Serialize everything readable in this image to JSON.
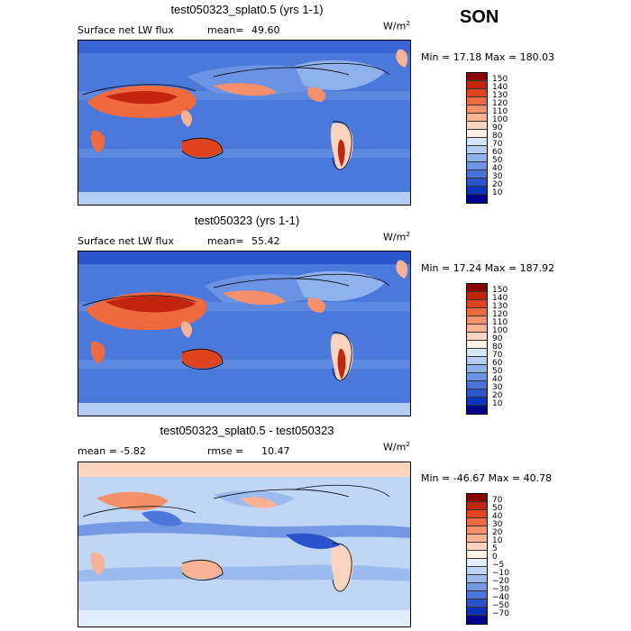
{
  "season": "SON",
  "units_main": "W/m",
  "units_sup": "2",
  "panels": [
    {
      "title": "test050323_splat0.5 (yrs 1-1)",
      "left_text": "Surface net LW flux",
      "right_label": "mean=",
      "right_value": "49.60",
      "minmax": "Min =  17.18 Max = 180.03",
      "colorbar_labels": [
        "150",
        "140",
        "130",
        "120",
        "110",
        "100",
        "90",
        "80",
        "70",
        "60",
        "50",
        "40",
        "30",
        "20",
        "10"
      ],
      "colors": [
        "#8b0000",
        "#c1250d",
        "#e0441e",
        "#ef6a3f",
        "#f5906a",
        "#f9b394",
        "#fbd4bf",
        "#fdf0e6",
        "#d6e6f9",
        "#b4cdf3",
        "#8fb1ec",
        "#6b93e3",
        "#4973d9",
        "#2a55cc",
        "#0b35bd",
        "#00008b"
      ]
    },
    {
      "title": "test050323 (yrs 1-1)",
      "left_text": "Surface net LW flux",
      "right_label": "mean=",
      "right_value": "55.42",
      "minmax": "Min =  17.24 Max = 187.92",
      "colorbar_labels": [
        "150",
        "140",
        "130",
        "120",
        "110",
        "100",
        "90",
        "80",
        "70",
        "60",
        "50",
        "40",
        "30",
        "20",
        "10"
      ],
      "colors": [
        "#8b0000",
        "#c1250d",
        "#e0441e",
        "#ef6a3f",
        "#f5906a",
        "#f9b394",
        "#fbd4bf",
        "#fdf0e6",
        "#d6e6f9",
        "#b4cdf3",
        "#8fb1ec",
        "#6b93e3",
        "#4973d9",
        "#2a55cc",
        "#0b35bd",
        "#00008b"
      ]
    },
    {
      "title": "test050323_splat0.5 - test050323",
      "left_text": "mean =   -5.82",
      "right_label": "rmse =",
      "right_value": "10.47",
      "minmax": "Min = -46.67 Max =  40.78",
      "colorbar_labels": [
        "70",
        "50",
        "40",
        "30",
        "20",
        "10",
        "5",
        "0",
        "−5",
        "−10",
        "−20",
        "−30",
        "−40",
        "−50",
        "−70"
      ],
      "colors": [
        "#8b0000",
        "#c1250d",
        "#e0441e",
        "#ef6a3f",
        "#f5906a",
        "#f9b394",
        "#fbd4bf",
        "#fdf0e6",
        "#e3eefb",
        "#c0d6f5",
        "#9bbbef",
        "#7399e5",
        "#4c76da",
        "#2a52cb",
        "#0b30b8",
        "#00008b"
      ]
    }
  ]
}
